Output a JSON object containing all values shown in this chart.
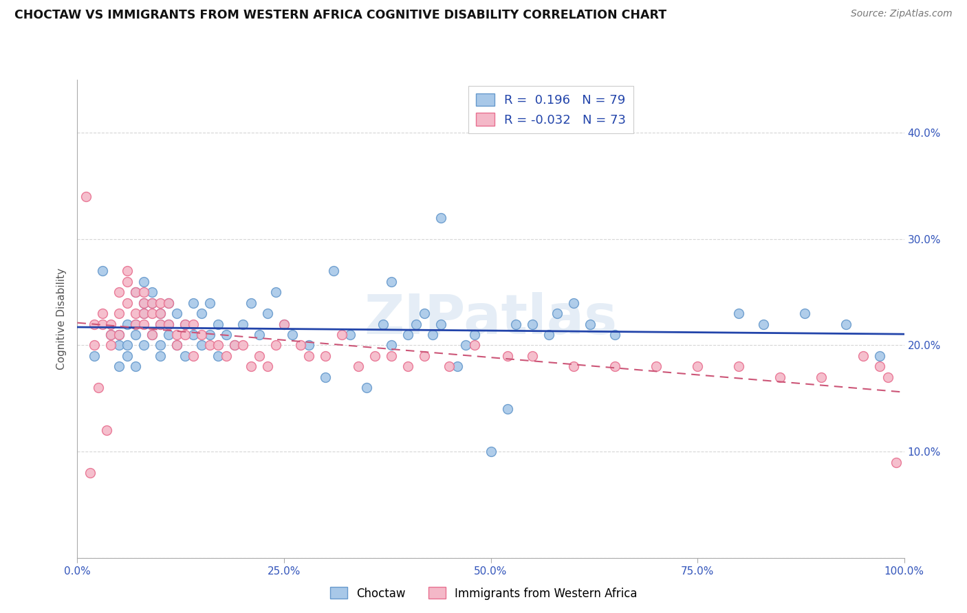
{
  "title": "CHOCTAW VS IMMIGRANTS FROM WESTERN AFRICA COGNITIVE DISABILITY CORRELATION CHART",
  "source": "Source: ZipAtlas.com",
  "ylabel": "Cognitive Disability",
  "watermark": "ZIPatlas",
  "legend_label1": "Choctaw",
  "legend_label2": "Immigrants from Western Africa",
  "r1": 0.196,
  "n1": 79,
  "r2": -0.032,
  "n2": 73,
  "color1": "#a8c8e8",
  "color2": "#f4b8c8",
  "edge_color1": "#6699cc",
  "edge_color2": "#e87090",
  "line_color1": "#2244aa",
  "line_color2": "#cc5577",
  "xmin": 0.0,
  "xmax": 1.0,
  "ymin": 0.0,
  "ymax": 0.45,
  "xtick_positions": [
    0.0,
    0.25,
    0.5,
    0.75,
    1.0
  ],
  "xtick_labels": [
    "0.0%",
    "25.0%",
    "50.0%",
    "75.0%",
    "100.0%"
  ],
  "ytick_positions": [
    0.0,
    0.1,
    0.2,
    0.3,
    0.4
  ],
  "ytick_labels_left": [
    "",
    "",
    "20.0%",
    "30.0%",
    "40.0%"
  ],
  "ytick_labels_right": [
    "",
    "10.0%",
    "20.0%",
    "30.0%",
    "40.0%"
  ],
  "choctaw_x": [
    0.02,
    0.03,
    0.04,
    0.05,
    0.05,
    0.05,
    0.06,
    0.06,
    0.06,
    0.07,
    0.07,
    0.07,
    0.07,
    0.08,
    0.08,
    0.08,
    0.08,
    0.09,
    0.09,
    0.09,
    0.1,
    0.1,
    0.1,
    0.1,
    0.11,
    0.11,
    0.11,
    0.12,
    0.12,
    0.13,
    0.13,
    0.14,
    0.14,
    0.15,
    0.15,
    0.16,
    0.16,
    0.17,
    0.17,
    0.18,
    0.19,
    0.2,
    0.21,
    0.22,
    0.23,
    0.24,
    0.25,
    0.26,
    0.28,
    0.3,
    0.31,
    0.33,
    0.35,
    0.37,
    0.38,
    0.4,
    0.41,
    0.43,
    0.44,
    0.46,
    0.48,
    0.5,
    0.52,
    0.55,
    0.58,
    0.62,
    0.65,
    0.8,
    0.83,
    0.88,
    0.93,
    0.97,
    0.38,
    0.42,
    0.44,
    0.47,
    0.53,
    0.57,
    0.6
  ],
  "choctaw_y": [
    0.19,
    0.27,
    0.21,
    0.21,
    0.2,
    0.18,
    0.22,
    0.2,
    0.19,
    0.25,
    0.22,
    0.21,
    0.18,
    0.26,
    0.24,
    0.23,
    0.2,
    0.25,
    0.24,
    0.21,
    0.23,
    0.22,
    0.2,
    0.19,
    0.24,
    0.22,
    0.21,
    0.23,
    0.2,
    0.22,
    0.19,
    0.24,
    0.21,
    0.23,
    0.2,
    0.24,
    0.21,
    0.22,
    0.19,
    0.21,
    0.2,
    0.22,
    0.24,
    0.21,
    0.23,
    0.25,
    0.22,
    0.21,
    0.2,
    0.17,
    0.27,
    0.21,
    0.16,
    0.22,
    0.2,
    0.21,
    0.22,
    0.21,
    0.32,
    0.18,
    0.21,
    0.1,
    0.14,
    0.22,
    0.23,
    0.22,
    0.21,
    0.23,
    0.22,
    0.23,
    0.22,
    0.19,
    0.26,
    0.23,
    0.22,
    0.2,
    0.22,
    0.21,
    0.24
  ],
  "wa_x": [
    0.01,
    0.02,
    0.02,
    0.03,
    0.03,
    0.04,
    0.04,
    0.04,
    0.05,
    0.05,
    0.05,
    0.06,
    0.06,
    0.06,
    0.07,
    0.07,
    0.07,
    0.08,
    0.08,
    0.08,
    0.08,
    0.09,
    0.09,
    0.09,
    0.1,
    0.1,
    0.1,
    0.11,
    0.11,
    0.12,
    0.12,
    0.13,
    0.13,
    0.14,
    0.14,
    0.15,
    0.16,
    0.17,
    0.18,
    0.19,
    0.2,
    0.21,
    0.22,
    0.23,
    0.24,
    0.25,
    0.27,
    0.28,
    0.3,
    0.32,
    0.34,
    0.36,
    0.38,
    0.4,
    0.42,
    0.45,
    0.48,
    0.52,
    0.55,
    0.6,
    0.65,
    0.7,
    0.75,
    0.8,
    0.85,
    0.9,
    0.95,
    0.97,
    0.98,
    0.99,
    0.015,
    0.025,
    0.035
  ],
  "wa_y": [
    0.34,
    0.2,
    0.22,
    0.22,
    0.23,
    0.21,
    0.22,
    0.2,
    0.21,
    0.23,
    0.25,
    0.27,
    0.26,
    0.24,
    0.23,
    0.25,
    0.22,
    0.24,
    0.23,
    0.25,
    0.22,
    0.23,
    0.24,
    0.21,
    0.23,
    0.24,
    0.22,
    0.24,
    0.22,
    0.21,
    0.2,
    0.22,
    0.21,
    0.22,
    0.19,
    0.21,
    0.2,
    0.2,
    0.19,
    0.2,
    0.2,
    0.18,
    0.19,
    0.18,
    0.2,
    0.22,
    0.2,
    0.19,
    0.19,
    0.21,
    0.18,
    0.19,
    0.19,
    0.18,
    0.19,
    0.18,
    0.2,
    0.19,
    0.19,
    0.18,
    0.18,
    0.18,
    0.18,
    0.18,
    0.17,
    0.17,
    0.19,
    0.18,
    0.17,
    0.09,
    0.08,
    0.16,
    0.12
  ]
}
